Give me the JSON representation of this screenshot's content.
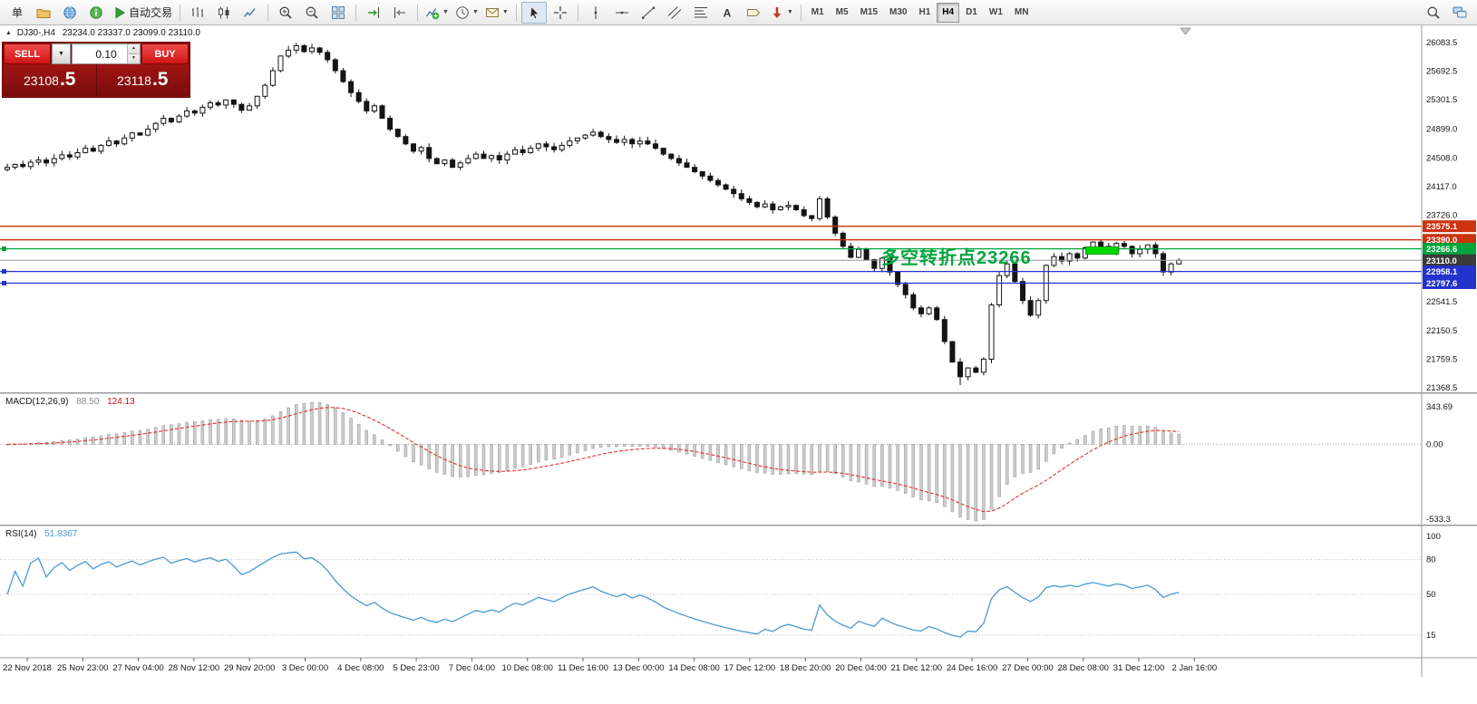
{
  "toolbar": {
    "items": [
      {
        "name": "new-order-button",
        "label": "单"
      },
      {
        "name": "profiles-icon-button",
        "icon": "folder"
      },
      {
        "name": "navigator-icon-button",
        "icon": "globe"
      },
      {
        "name": "data-window-icon-button",
        "icon": "info"
      },
      {
        "name": "autotrading-button",
        "icon": "play",
        "label": "自动交易"
      },
      {
        "sep": true
      },
      {
        "name": "bar-chart-icon-button",
        "icon": "bars"
      },
      {
        "name": "candlestick-chart-icon-button",
        "icon": "candles"
      },
      {
        "name": "line-chart-icon-button",
        "icon": "linechart"
      },
      {
        "sep": true
      },
      {
        "name": "zoom-in-icon-button",
        "icon": "zoomin"
      },
      {
        "name": "zoom-out-icon-button",
        "icon": "zoomout"
      },
      {
        "name": "tile-windows-icon-button",
        "icon": "grid"
      },
      {
        "sep": true
      },
      {
        "name": "auto-scroll-icon-button",
        "icon": "autoscroll"
      },
      {
        "name": "chart-shift-icon-button",
        "icon": "chartshift"
      },
      {
        "sep": true
      },
      {
        "name": "indicators-icon-button",
        "icon": "indicator",
        "dropdown": true
      },
      {
        "name": "periods-icon-button",
        "icon": "clock",
        "dropdown": true
      },
      {
        "name": "templates-icon-button",
        "icon": "mail",
        "dropdown": true
      },
      {
        "sep": true
      },
      {
        "name": "cursor-icon-button",
        "icon": "cursor",
        "active": true
      },
      {
        "name": "crosshair-icon-button",
        "icon": "crosshair"
      },
      {
        "sep": true
      },
      {
        "name": "vertical-line-icon-button",
        "icon": "vline"
      },
      {
        "name": "horizontal-line-icon-button",
        "icon": "hline"
      },
      {
        "name": "trendline-icon-button",
        "icon": "tline"
      },
      {
        "name": "equidistant-channel-icon-button",
        "icon": "channel"
      },
      {
        "name": "fibonacci-icon-button",
        "icon": "fibo"
      },
      {
        "name": "text-icon-button",
        "icon": "textA"
      },
      {
        "name": "text-label-icon-button",
        "icon": "label"
      },
      {
        "name": "arrows-icon-button",
        "icon": "arrowshape",
        "dropdown": true
      },
      {
        "sep": true
      },
      {
        "timeframes": true
      },
      {
        "spacer": true
      },
      {
        "name": "search-icon-button",
        "icon": "search"
      },
      {
        "name": "community-icon-button",
        "icon": "chat"
      }
    ],
    "timeframes": [
      "M1",
      "M5",
      "M15",
      "M30",
      "H1",
      "H4",
      "D1",
      "W1",
      "MN"
    ],
    "active_timeframe": "H4"
  },
  "symbol_bar": {
    "symbol_period": "DJ30-,H4",
    "ohlc": "23234.0 23337.0 23099.0 23110.0"
  },
  "trade_panel": {
    "sell_label": "SELL",
    "buy_label": "BUY",
    "volume": "0.10",
    "sell_price_main": "23108",
    "sell_price_pips": ".5",
    "buy_price_main": "23118",
    "buy_price_pips": ".5"
  },
  "annotation": {
    "text": "多空转折点23266",
    "color": "#00a43c"
  },
  "highlight_box": {
    "color": "#00d800"
  },
  "chart_data": {
    "type": "candlestick",
    "symbol": "DJ30-",
    "timeframe": "H4",
    "ylim": [
      21368.5,
      26083.5
    ],
    "price_axis_ticks": [
      "26083.5",
      "25692.5",
      "25301.5",
      "24899.0",
      "24508.0",
      "24117.0",
      "23726.0",
      "22541.5",
      "22150.5",
      "21759.5",
      "21368.5"
    ],
    "time_labels": [
      "22 Nov 2018",
      "25 Nov 23:00",
      "27 Nov 04:00",
      "28 Nov 12:00",
      "29 Nov 20:00",
      "3 Dec 00:00",
      "4 Dec 08:00",
      "5 Dec 23:00",
      "7 Dec 04:00",
      "10 Dec 08:00",
      "11 Dec 16:00",
      "13 Dec 00:00",
      "14 Dec 08:00",
      "17 Dec 12:00",
      "18 Dec 20:00",
      "20 Dec 04:00",
      "21 Dec 12:00",
      "24 Dec 16:00",
      "27 Dec 00:00",
      "28 Dec 08:00",
      "31 Dec 12:00",
      "2 Jan 16:00"
    ],
    "open_first": 24350,
    "closes": [
      24380,
      24420,
      24390,
      24450,
      24480,
      24440,
      24500,
      24550,
      24520,
      24580,
      24640,
      24600,
      24680,
      24740,
      24700,
      24780,
      24850,
      24820,
      24900,
      24980,
      25050,
      25000,
      25080,
      25150,
      25120,
      25200,
      25260,
      25230,
      25300,
      25240,
      25160,
      25220,
      25350,
      25500,
      25700,
      25900,
      25980,
      26040,
      25960,
      26010,
      25950,
      25850,
      25700,
      25550,
      25400,
      25280,
      25150,
      25220,
      25050,
      24900,
      24800,
      24700,
      24600,
      24650,
      24500,
      24430,
      24480,
      24380,
      24440,
      24500,
      24560,
      24500,
      24540,
      24480,
      24560,
      24620,
      24580,
      24640,
      24700,
      24660,
      24620,
      24680,
      24740,
      24780,
      24820,
      24860,
      24800,
      24760,
      24720,
      24760,
      24700,
      24740,
      24700,
      24640,
      24560,
      24500,
      24440,
      24380,
      24320,
      24260,
      24200,
      24140,
      24080,
      24020,
      23950,
      23900,
      23840,
      23880,
      23800,
      23840,
      23860,
      23800,
      23720,
      23680,
      23950,
      23700,
      23480,
      23300,
      23150,
      23260,
      23120,
      23000,
      23140,
      22950,
      22780,
      22640,
      22460,
      22380,
      22460,
      22300,
      22000,
      21720,
      21520,
      21640,
      21580,
      21760,
      22500,
      22900,
      23060,
      22820,
      22560,
      22360,
      22560,
      23040,
      23160,
      23100,
      23200,
      23140,
      23280,
      23360,
      23300,
      23240,
      23340,
      23300,
      23200,
      23260,
      23320,
      23200,
      22950,
      23060,
      23110
    ],
    "horizontal_lines": [
      {
        "label": "23575.1",
        "price": 23575.1,
        "color": "#cc3311"
      },
      {
        "label": "23390.0",
        "price": 23390.0,
        "color": "#cc3311"
      },
      {
        "label": "23266.6",
        "price": 23266.6,
        "color": "#00a43c",
        "handle": true
      },
      {
        "label": "23110.0",
        "price": 23110.0,
        "color": "#9a9a9a",
        "tag_color": "#3a3a3a",
        "current": true
      },
      {
        "label": "22958.1",
        "price": 22958.1,
        "color": "#2233cc",
        "handle": true
      },
      {
        "label": "22797.6",
        "price": 22797.6,
        "color": "#2233cc",
        "handle": true
      }
    ],
    "indicators": [
      {
        "name": "MACD(12,26,9)",
        "value_main": "88.50",
        "value_signal": "124.13",
        "axis_labels": [
          "343.69",
          "0.00",
          "-533.3"
        ],
        "fast": 12,
        "slow": 26,
        "signal": 9,
        "histogram_color": "#cccccc",
        "signal_color": "#e53030"
      },
      {
        "name": "RSI(14)",
        "value": "51.8367",
        "axis_labels": [
          "100",
          "80",
          "50",
          "15"
        ],
        "levels": [
          80,
          50,
          15
        ],
        "period": 14,
        "line_color": "#4a9ad4"
      }
    ]
  }
}
